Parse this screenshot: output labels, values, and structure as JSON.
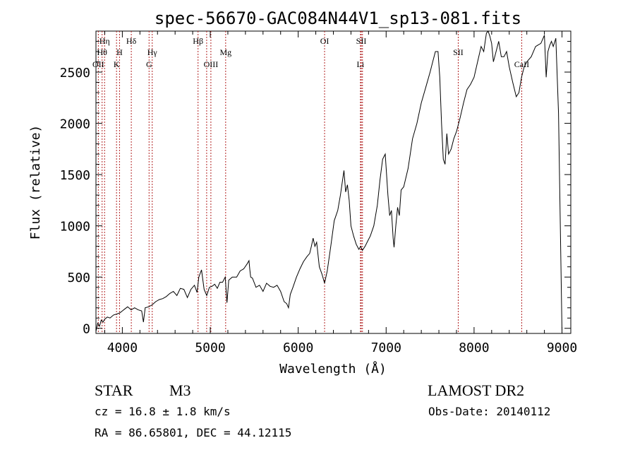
{
  "chart_data": {
    "type": "line",
    "title": "spec-56670-GAC084N44V1_sp13-081.fits",
    "xlabel": "Wavelength (Å)",
    "ylabel": "Flux (relative)",
    "xlim": [
      3700,
      9100
    ],
    "ylim": [
      -50,
      2900
    ],
    "xticks": [
      4000,
      5000,
      6000,
      7000,
      8000,
      9000
    ],
    "yticks": [
      0,
      500,
      1000,
      1500,
      2000,
      2500
    ],
    "grid": false,
    "series": [
      {
        "x": [
          3700,
          3720,
          3740,
          3760,
          3780,
          3800,
          3830,
          3860,
          3900,
          3940,
          3970,
          4000,
          4030,
          4060,
          4100,
          4140,
          4180,
          4220,
          4240,
          4260,
          4300,
          4340,
          4380,
          4420,
          4460,
          4500,
          4540,
          4580,
          4620,
          4660,
          4700,
          4740,
          4780,
          4820,
          4850,
          4870,
          4900,
          4930,
          4960,
          4990,
          5020,
          5050,
          5080,
          5110,
          5140,
          5170,
          5190,
          5210,
          5250,
          5300,
          5340,
          5380,
          5420,
          5440,
          5450,
          5460,
          5480,
          5520,
          5560,
          5600,
          5640,
          5680,
          5720,
          5760,
          5800,
          5840,
          5870,
          5890,
          5910,
          5940,
          5980,
          6020,
          6060,
          6100,
          6130,
          6150,
          6170,
          6190,
          6210,
          6240,
          6270,
          6300,
          6330,
          6370,
          6410,
          6450,
          6480,
          6500,
          6520,
          6540,
          6560,
          6580,
          6600,
          6630,
          6660,
          6690,
          6710,
          6730,
          6760,
          6790,
          6820,
          6860,
          6900,
          6930,
          6960,
          6990,
          7020,
          7040,
          7060,
          7080,
          7090,
          7110,
          7130,
          7150,
          7170,
          7200,
          7250,
          7300,
          7350,
          7400,
          7450,
          7500,
          7530,
          7560,
          7590,
          7610,
          7630,
          7650,
          7670,
          7690,
          7710,
          7740,
          7770,
          7800,
          7840,
          7880,
          7920,
          7960,
          8000,
          8040,
          8080,
          8110,
          8140,
          8160,
          8180,
          8200,
          8220,
          8250,
          8280,
          8310,
          8340,
          8370,
          8400,
          8440,
          8480,
          8510,
          8540,
          8570,
          8600,
          8650,
          8700,
          8760,
          8800,
          8820,
          8840,
          8860,
          8880,
          8900,
          8930,
          8960,
          8990,
          9000
        ],
        "values": [
          -30,
          50,
          20,
          80,
          60,
          90,
          110,
          100,
          130,
          140,
          150,
          170,
          190,
          210,
          180,
          200,
          180,
          170,
          60,
          200,
          210,
          230,
          260,
          280,
          290,
          310,
          340,
          360,
          320,
          390,
          380,
          300,
          380,
          420,
          350,
          500,
          570,
          380,
          320,
          400,
          410,
          430,
          390,
          450,
          450,
          500,
          250,
          470,
          500,
          500,
          560,
          580,
          630,
          660,
          570,
          500,
          490,
          400,
          420,
          360,
          440,
          410,
          400,
          420,
          360,
          260,
          240,
          200,
          330,
          400,
          500,
          580,
          650,
          700,
          730,
          800,
          880,
          800,
          840,
          600,
          530,
          440,
          560,
          800,
          1050,
          1150,
          1300,
          1420,
          1540,
          1330,
          1400,
          1250,
          1000,
          900,
          820,
          770,
          800,
          760,
          800,
          850,
          900,
          1000,
          1200,
          1450,
          1650,
          1700,
          1300,
          1100,
          1150,
          880,
          790,
          1000,
          1180,
          1100,
          1350,
          1380,
          1560,
          1850,
          2000,
          2200,
          2350,
          2500,
          2600,
          2700,
          2700,
          2450,
          2000,
          1650,
          1600,
          1900,
          1700,
          1750,
          1850,
          1920,
          2050,
          2200,
          2330,
          2380,
          2450,
          2600,
          2750,
          2700,
          2880,
          2900,
          2850,
          2780,
          2600,
          2700,
          2800,
          2650,
          2650,
          2700,
          2550,
          2400,
          2260,
          2300,
          2450,
          2550,
          2600,
          2650,
          2750,
          2780,
          2860,
          2450,
          2700,
          2760,
          2800,
          2750,
          2830,
          2100,
          500,
          -20
        ]
      }
    ],
    "lines": [
      {
        "wavelength": 3727,
        "label": "OII",
        "row": 3
      },
      {
        "wavelength": 3770,
        "label": "Hθ",
        "row": 2
      },
      {
        "wavelength": 3798,
        "label": "Hη",
        "row": 1
      },
      {
        "wavelength": 3934,
        "label": "K",
        "row": 3
      },
      {
        "wavelength": 3968,
        "label": "H",
        "row": 2
      },
      {
        "wavelength": 4102,
        "label": "Hδ",
        "row": 1
      },
      {
        "wavelength": 4304,
        "label": "G",
        "row": 3
      },
      {
        "wavelength": 4340,
        "label": "Hγ",
        "row": 2
      },
      {
        "wavelength": 4861,
        "label": "Hβ",
        "row": 1
      },
      {
        "wavelength": 4959,
        "label": "",
        "row": 0
      },
      {
        "wavelength": 5007,
        "label": "OIII",
        "row": 3
      },
      {
        "wavelength": 5175,
        "label": "Mg",
        "row": 2
      },
      {
        "wavelength": 6300,
        "label": "OI",
        "row": 1
      },
      {
        "wavelength": 6708,
        "label": "Li",
        "row": 3
      },
      {
        "wavelength": 6717,
        "label": "SII",
        "row": 1
      },
      {
        "wavelength": 6731,
        "label": "",
        "row": 0
      },
      {
        "wavelength": 7820,
        "label": "SII",
        "row": 2
      },
      {
        "wavelength": 8542,
        "label": "CaII",
        "row": 3
      }
    ]
  },
  "footer": {
    "object_type": "STAR",
    "subclass": "M3",
    "redshift": "cz = 16.8 ± 1.8 km/s",
    "coords": "RA =  86.65801, DEC =  44.12115",
    "survey": "LAMOST DR2",
    "obs_date": "Obs-Date: 20140112"
  },
  "colors": {
    "line_marker": "#b22222",
    "spectrum": "#000000"
  }
}
